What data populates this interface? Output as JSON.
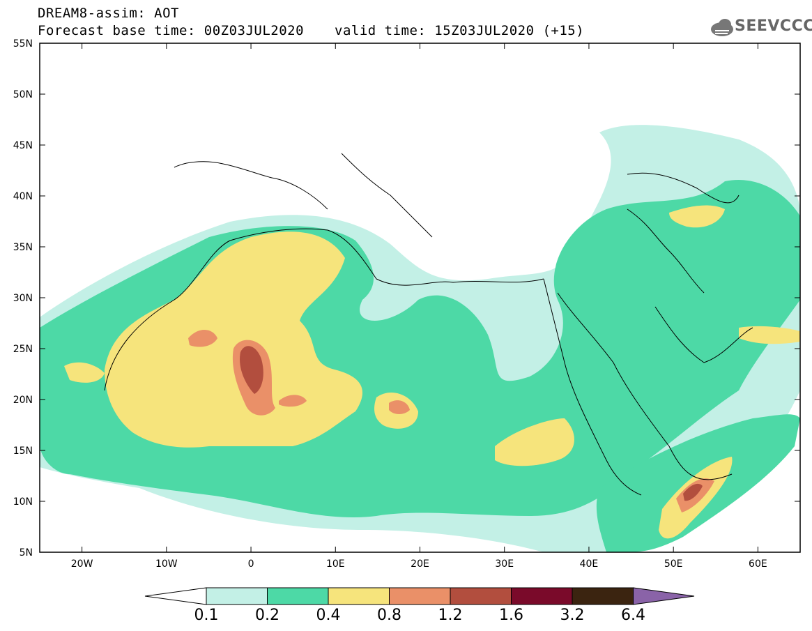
{
  "header": {
    "title": "DREAM8-assim: AOT",
    "base_time": "Forecast base time: 00Z03JUL2020",
    "valid_time": "valid time: 15Z03JUL2020 (+15)"
  },
  "logo": {
    "text": "SEEVCCC",
    "icon": "cloud-icon"
  },
  "map": {
    "lon_range": [
      -25,
      65
    ],
    "lat_range": [
      5,
      55
    ],
    "lat_labels": [
      "55N",
      "50N",
      "45N",
      "40N",
      "35N",
      "30N",
      "25N",
      "20N",
      "15N",
      "10N",
      "5N"
    ],
    "lon_labels": [
      "20W",
      "10W",
      "0",
      "10E",
      "20E",
      "30E",
      "40E",
      "50E",
      "60E"
    ]
  },
  "colorbar": {
    "labels": [
      "0.1",
      "0.2",
      "0.4",
      "0.8",
      "1.2",
      "1.6",
      "3.2",
      "6.4"
    ],
    "colors": [
      "#c3f0e6",
      "#4dd9a6",
      "#f6e47c",
      "#ea9068",
      "#b24e3e",
      "#7a0a2a",
      "#3b2410",
      "#8a63a8"
    ]
  }
}
